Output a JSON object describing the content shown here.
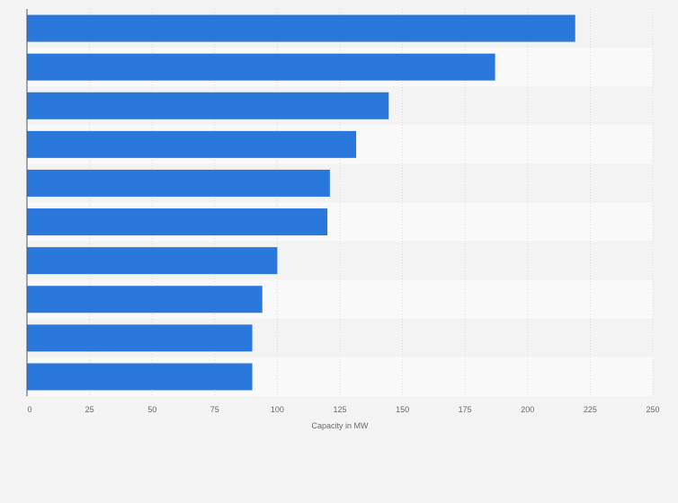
{
  "chart_data": {
    "type": "bar",
    "orientation": "horizontal",
    "categories": [
      "",
      "",
      "",
      "",
      "",
      "",
      "",
      "",
      "",
      ""
    ],
    "values": [
      219,
      187,
      144.5,
      131.5,
      121,
      120,
      100,
      94,
      90,
      90
    ],
    "xlabel": "Capacity in MW",
    "ylabel": "",
    "xlim": [
      0,
      250
    ],
    "xticks": [
      0,
      25,
      50,
      75,
      100,
      125,
      150,
      175,
      200,
      225,
      250
    ],
    "grid": "vertical",
    "bar_color": "#2a78dc",
    "band_colors": [
      "#f3f3f3",
      "#f9f9f9"
    ],
    "gridline_color": "#dcdcdc",
    "axis_color": "#555555"
  }
}
